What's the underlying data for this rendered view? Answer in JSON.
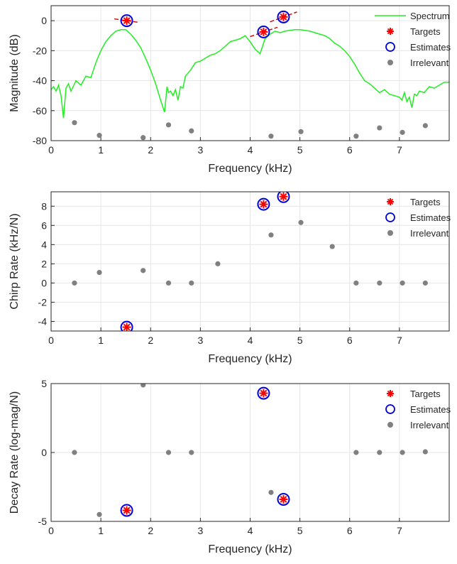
{
  "figure": {
    "colors": {
      "spectrum": "#22ee22",
      "target": "#ff0000",
      "estimate": "#0000dd",
      "irrelevant": "#808080",
      "chirp_line": "#cc1111",
      "axes": "#262626",
      "grid": "#e6e6e6"
    }
  },
  "chart_data": [
    {
      "type": "line",
      "xlabel": "Frequency (kHz)",
      "ylabel": "Magnitude (dB)",
      "xlim": [
        0,
        8
      ],
      "ylim": [
        -80,
        10
      ],
      "xticks": [
        "0",
        "1",
        "2",
        "3",
        "4",
        "5",
        "6",
        "7"
      ],
      "yticks": [
        "-80",
        "-60",
        "-40",
        "-20",
        "0"
      ],
      "grid": true,
      "legend_position": "top-right",
      "legend": [
        "Spectrum",
        "Targets",
        "Estimates",
        "Irrelevant"
      ],
      "spectrum": {
        "name": "Spectrum",
        "x": [
          0,
          0.05,
          0.1,
          0.15,
          0.2,
          0.25,
          0.3,
          0.35,
          0.4,
          0.5,
          0.6,
          0.7,
          0.8,
          0.9,
          1.0,
          1.1,
          1.2,
          1.3,
          1.4,
          1.5,
          1.6,
          1.7,
          1.8,
          1.9,
          2.0,
          2.1,
          2.2,
          2.28,
          2.33,
          2.36,
          2.4,
          2.45,
          2.5,
          2.55,
          2.6,
          2.65,
          2.7,
          2.8,
          2.9,
          3.0,
          3.1,
          3.2,
          3.3,
          3.4,
          3.5,
          3.6,
          3.7,
          3.8,
          3.9,
          4.0,
          4.1,
          4.2,
          4.25,
          4.3,
          4.4,
          4.5,
          4.6,
          4.7,
          4.8,
          4.9,
          5.0,
          5.1,
          5.2,
          5.3,
          5.4,
          5.5,
          5.6,
          5.7,
          5.8,
          5.9,
          6.0,
          6.1,
          6.2,
          6.3,
          6.4,
          6.5,
          6.6,
          6.7,
          6.8,
          6.9,
          7.0,
          7.05,
          7.1,
          7.15,
          7.2,
          7.25,
          7.3,
          7.35,
          7.4,
          7.5,
          7.6,
          7.7,
          7.8,
          7.9,
          8.0
        ],
        "y": [
          -46,
          -44,
          -47,
          -43,
          -50,
          -65,
          -45,
          -42,
          -47,
          -40,
          -43,
          -37,
          -38,
          -28,
          -20,
          -14,
          -10,
          -7,
          -6,
          -6,
          -9,
          -13,
          -18,
          -25,
          -33,
          -42,
          -53,
          -61,
          -44,
          -48,
          -47,
          -50,
          -46,
          -53,
          -44,
          -45,
          -37,
          -33,
          -28,
          -27,
          -25,
          -23,
          -22,
          -20,
          -17,
          -14,
          -13,
          -12,
          -10,
          -14,
          -19,
          -22,
          -17,
          -12,
          -9,
          -7,
          -8,
          -7,
          -6.5,
          -6,
          -6,
          -6.5,
          -7,
          -8,
          -9,
          -10,
          -12,
          -15,
          -17,
          -20,
          -24,
          -29,
          -35,
          -40,
          -42,
          -45,
          -48,
          -46,
          -49,
          -50,
          -51,
          -53,
          -48,
          -54,
          -51,
          -58,
          -49,
          -50,
          -47,
          -48,
          -44,
          -45,
          -43,
          -41,
          -41
        ]
      },
      "targets": {
        "name": "Targets",
        "x": [
          1.52,
          4.27,
          4.67
        ],
        "y": [
          0,
          -7.5,
          2.5
        ]
      },
      "estimates": {
        "name": "Estimates",
        "x": [
          1.52,
          4.27,
          4.67
        ],
        "y": [
          0,
          -7.5,
          2.5
        ]
      },
      "chirp_segments": [
        {
          "x": [
            1.27,
            1.77
          ],
          "y": [
            1.2,
            -1.2
          ]
        },
        {
          "x": [
            4.0,
            4.55
          ],
          "y": [
            -10.6,
            -4.4
          ]
        },
        {
          "x": [
            4.4,
            4.94
          ],
          "y": [
            -0.8,
            5.8
          ]
        }
      ],
      "irrelevant": {
        "name": "Irrelevant",
        "x": [
          0.47,
          0.97,
          1.85,
          2.36,
          2.82,
          4.42,
          5.02,
          6.13,
          6.6,
          7.06,
          7.52
        ],
        "y": [
          -68,
          -76.5,
          -78,
          -69.5,
          -73.5,
          -77,
          -74,
          -77,
          -71.5,
          -74.5,
          -70
        ]
      }
    },
    {
      "type": "scatter",
      "xlabel": "Frequency (kHz)",
      "ylabel": "Chirp Rate (kHz/N)",
      "xlim": [
        0,
        8
      ],
      "ylim": [
        -5,
        9.5
      ],
      "xticks": [
        "0",
        "1",
        "2",
        "3",
        "4",
        "5",
        "6",
        "7"
      ],
      "yticks": [
        "-4",
        "-2",
        "0",
        "2",
        "4",
        "6",
        "8"
      ],
      "grid": true,
      "legend_position": "top-right",
      "legend": [
        "Targets",
        "Estimates",
        "Irrelevant"
      ],
      "targets": {
        "name": "Targets",
        "x": [
          1.52,
          4.27,
          4.67
        ],
        "y": [
          -4.6,
          8.2,
          9.0
        ]
      },
      "estimates": {
        "name": "Estimates",
        "x": [
          1.52,
          4.27,
          4.67
        ],
        "y": [
          -4.6,
          8.2,
          9.0
        ]
      },
      "irrelevant": {
        "name": "Irrelevant",
        "x": [
          0.47,
          0.97,
          1.85,
          2.36,
          2.82,
          3.35,
          4.42,
          5.02,
          5.65,
          6.13,
          6.6,
          7.06,
          7.52
        ],
        "y": [
          0,
          1.1,
          1.3,
          0,
          0,
          2.0,
          5.0,
          6.3,
          3.8,
          0,
          0,
          0,
          0
        ]
      }
    },
    {
      "type": "scatter",
      "xlabel": "Frequency (kHz)",
      "ylabel": "Decay Rate (log-mag/N)",
      "xlim": [
        0,
        8
      ],
      "ylim": [
        -5,
        5
      ],
      "xticks": [
        "0",
        "1",
        "2",
        "3",
        "4",
        "5",
        "6",
        "7"
      ],
      "yticks": [
        "-5",
        "0",
        "5"
      ],
      "grid": true,
      "legend_position": "top-right",
      "legend": [
        "Targets",
        "Estimates",
        "Irrelevant"
      ],
      "targets": {
        "name": "Targets",
        "x": [
          1.52,
          4.27,
          4.67
        ],
        "y": [
          -4.2,
          4.3,
          -3.4
        ]
      },
      "estimates": {
        "name": "Estimates",
        "x": [
          1.52,
          4.27,
          4.67
        ],
        "y": [
          -4.2,
          4.3,
          -3.4
        ]
      },
      "irrelevant": {
        "name": "Irrelevant",
        "x": [
          0.47,
          0.97,
          1.85,
          2.36,
          2.82,
          4.42,
          6.13,
          6.6,
          7.06,
          7.52
        ],
        "y": [
          0,
          -4.5,
          4.9,
          0,
          0,
          -2.9,
          0,
          0,
          0,
          0.05
        ]
      }
    }
  ]
}
